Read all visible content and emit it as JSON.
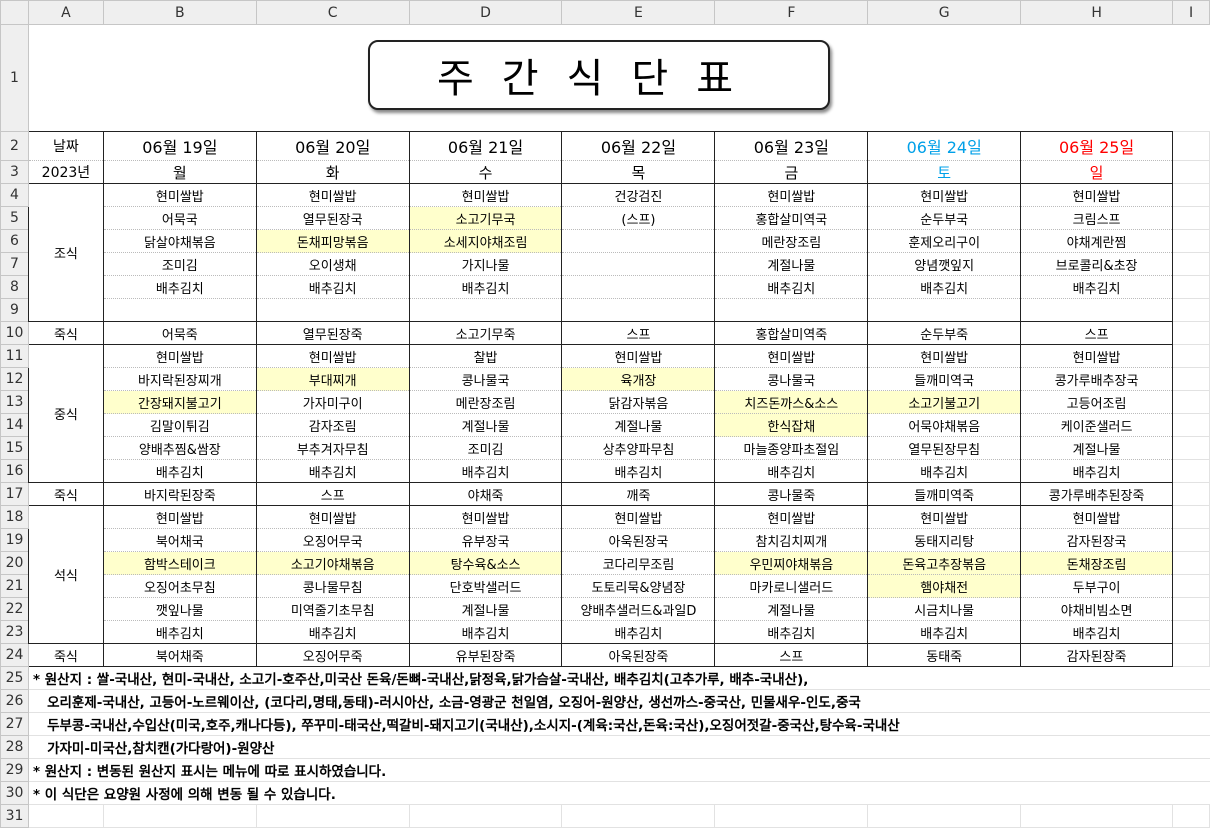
{
  "columns": [
    "A",
    "B",
    "C",
    "D",
    "E",
    "F",
    "G",
    "H",
    "I"
  ],
  "title": "주간식단표",
  "header": {
    "date_label": "날짜",
    "year_label": "2023년"
  },
  "days": [
    {
      "date": "06월 19일",
      "weekday": "월",
      "color": "#000000"
    },
    {
      "date": "06월 20일",
      "weekday": "화",
      "color": "#000000"
    },
    {
      "date": "06월 21일",
      "weekday": "수",
      "color": "#000000"
    },
    {
      "date": "06월 22일",
      "weekday": "목",
      "color": "#000000"
    },
    {
      "date": "06월 23일",
      "weekday": "금",
      "color": "#000000"
    },
    {
      "date": "06월 24일",
      "weekday": "토",
      "color": "#00a0e8"
    },
    {
      "date": "06월 25일",
      "weekday": "일",
      "color": "#ff0000"
    }
  ],
  "highlight_color": "#ffffcc",
  "highlighted_cells": [
    "C6",
    "D5",
    "D6",
    "C12",
    "E12",
    "B13",
    "F13",
    "G13",
    "F14",
    "B20",
    "C20",
    "D20",
    "F20",
    "G20",
    "H20",
    "G21"
  ],
  "meals": [
    {
      "label": "조식",
      "start_row": 4,
      "rows": [
        [
          "현미쌀밥",
          "현미쌀밥",
          "현미쌀밥",
          "건강검진",
          "현미쌀밥",
          "현미쌀밥",
          "현미쌀밥"
        ],
        [
          "어묵국",
          "열무된장국",
          "소고기무국",
          "(스프)",
          "홍합살미역국",
          "순두부국",
          "크림스프"
        ],
        [
          "닭살야채볶음",
          "돈채피망볶음",
          "소세지야채조림",
          "",
          "메란장조림",
          "훈제오리구이",
          "야채계란찜"
        ],
        [
          "조미김",
          "오이생채",
          "가지나물",
          "",
          "계절나물",
          "양념깻잎지",
          "브로콜리&초장"
        ],
        [
          "배추김치",
          "배추김치",
          "배추김치",
          "",
          "배추김치",
          "배추김치",
          "배추김치"
        ],
        [
          "",
          "",
          "",
          "",
          "",
          "",
          ""
        ]
      ],
      "porridge_label": "죽식",
      "porridge": [
        "어묵죽",
        "열무된장죽",
        "소고기무죽",
        "스프",
        "홍합살미역죽",
        "순두부죽",
        "스프"
      ]
    },
    {
      "label": "중식",
      "start_row": 11,
      "rows": [
        [
          "현미쌀밥",
          "현미쌀밥",
          "찰밥",
          "현미쌀밥",
          "현미쌀밥",
          "현미쌀밥",
          "현미쌀밥"
        ],
        [
          "바지락된장찌개",
          "부대찌개",
          "콩나물국",
          "육개장",
          "콩나물국",
          "들깨미역국",
          "콩가루배추장국"
        ],
        [
          "간장돼지불고기",
          "가자미구이",
          "메란장조림",
          "닭감자볶음",
          "치즈돈까스&소스",
          "소고기불고기",
          "고등어조림"
        ],
        [
          "김말이튀김",
          "감자조림",
          "계절나물",
          "계절나물",
          "한식잡채",
          "어묵야채볶음",
          "케이준샐러드"
        ],
        [
          "양배추찜&쌈장",
          "부추겨자무침",
          "조미김",
          "상추양파무침",
          "마늘종양파초절임",
          "열무된장무침",
          "계절나물"
        ],
        [
          "배추김치",
          "배추김치",
          "배추김치",
          "배추김치",
          "배추김치",
          "배추김치",
          "배추김치"
        ]
      ],
      "porridge_label": "죽식",
      "porridge": [
        "바지락된장죽",
        "스프",
        "야채죽",
        "깨죽",
        "콩나물죽",
        "들깨미역죽",
        "콩가루배추된장죽"
      ]
    },
    {
      "label": "석식",
      "start_row": 18,
      "rows": [
        [
          "현미쌀밥",
          "현미쌀밥",
          "현미쌀밥",
          "현미쌀밥",
          "현미쌀밥",
          "현미쌀밥",
          "현미쌀밥"
        ],
        [
          "북어채국",
          "오징어무국",
          "유부장국",
          "아욱된장국",
          "참치김치찌개",
          "동태지리탕",
          "감자된장국"
        ],
        [
          "함박스테이크",
          "소고기야채볶음",
          "탕수육&소스",
          "코다리무조림",
          "우민찌야채볶음",
          "돈육고추장볶음",
          "돈채장조림"
        ],
        [
          "오징어초무침",
          "콩나물무침",
          "단호박샐러드",
          "도토리묵&양념장",
          "마카로니샐러드",
          "햄야채전",
          "두부구이"
        ],
        [
          "깻잎나물",
          "미역줄기초무침",
          "계절나물",
          "양배추샐러드&과일D",
          "계절나물",
          "시금치나물",
          "야채비빔소면"
        ],
        [
          "배추김치",
          "배추김치",
          "배추김치",
          "배추김치",
          "배추김치",
          "배추김치",
          "배추김치"
        ]
      ],
      "porridge_label": "죽식",
      "porridge": [
        "북어채죽",
        "오징어무죽",
        "유부된장죽",
        "아욱된장죽",
        "스프",
        "동태죽",
        "감자된장죽"
      ]
    }
  ],
  "notes": [
    "* 원산지 : 쌀-국내산, 현미-국내산, 소고기-호주산,미국산 돈육/돈뼈-국내산,닭정육,닭가슴살-국내산, 배추김치(고추가루, 배추-국내산),",
    "   오리훈제-국내산, 고등어-노르웨이산, (코다리,명태,동태)-러시아산, 소금-영광군 천일염, 오징어-원양산, 생선까스-중국산, 민물새우-인도,중국",
    "   두부콩-국내산,수입산(미국,호주,캐나다등), 쭈꾸미-태국산,떡갈비-돼지고기(국내산),소시지-(계육:국산,돈육:국산),오징어젓갈-중국산,탕수육-국내산",
    "   가자미-미국산,참치캔(가다랑어)-원양산",
    "* 원산지 : 변동된 원산지 표시는 메뉴에 따로 표시하였습니다.",
    "* 이 식단은 요양원 사정에 의해 변동 될 수 있습니다."
  ]
}
